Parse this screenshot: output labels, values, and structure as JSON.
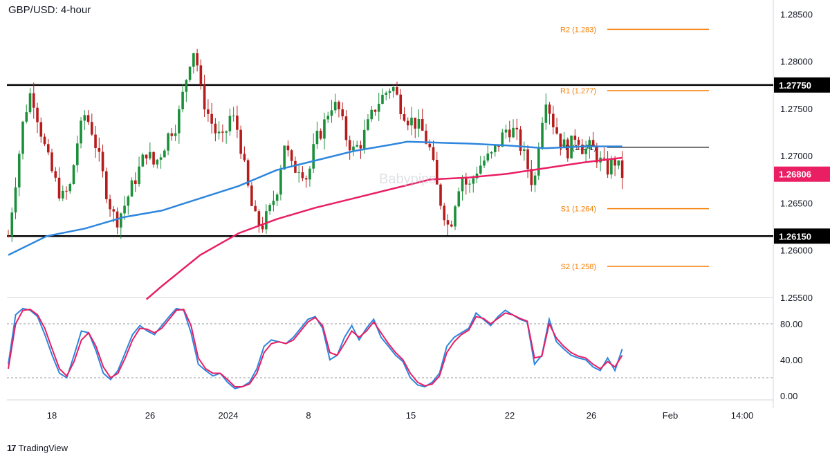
{
  "chart_title": "GBP/USD: 4-hour",
  "watermark": "Babypips",
  "footer": {
    "brand": "TradingView",
    "logo": "17"
  },
  "colors": {
    "up": "#26a69a",
    "up_body": "#1b8f3a",
    "down": "#b71c1c",
    "ma_fast": "#2e86de",
    "ma_slow": "#e91e63",
    "pivot": "#f57c00",
    "range_line": "#000000",
    "stoch_k": "#2e86de",
    "stoch_d": "#e91e63"
  },
  "chart_data": [
    {
      "type": "candlestick",
      "symbol": "GBP/USD",
      "timeframe": "4-hour",
      "ylim": [
        1.255,
        1.2865
      ],
      "y_ticks": [
        "1.28500",
        "1.28000",
        "1.27500",
        "1.27000",
        "1.26500",
        "1.26000",
        "1.25500"
      ],
      "x_ticks": [
        "18",
        "26",
        "2024",
        "8",
        "15",
        "22",
        "26",
        "Feb",
        "14:00"
      ],
      "horizontal_lines": [
        {
          "label": "1.27750",
          "value": 1.2775,
          "color": "#000000"
        },
        {
          "label": "1.26150",
          "value": 1.2615,
          "color": "#000000"
        }
      ],
      "pivot_levels": [
        {
          "label": "R2 (1.283)",
          "value": 1.2834
        },
        {
          "label": "R1 (1.277)",
          "value": 1.2769
        },
        {
          "label": "PP (1.271)",
          "value": 1.2709
        },
        {
          "label": "S1 (1.264)",
          "value": 1.2644
        },
        {
          "label": "S2 (1.258)",
          "value": 1.2583
        }
      ],
      "last_price": {
        "label": "1.26806",
        "value": 1.26806
      },
      "price_path": [
        [
          0,
          1.2615
        ],
        [
          4,
          1.274
        ],
        [
          6,
          1.277
        ],
        [
          8,
          1.2735
        ],
        [
          10,
          1.27
        ],
        [
          12,
          1.2675
        ],
        [
          14,
          1.2655
        ],
        [
          16,
          1.2665
        ],
        [
          18,
          1.2715
        ],
        [
          20,
          1.2745
        ],
        [
          22,
          1.2725
        ],
        [
          24,
          1.269
        ],
        [
          26,
          1.2655
        ],
        [
          28,
          1.263
        ],
        [
          30,
          1.2645
        ],
        [
          32,
          1.2665
        ],
        [
          34,
          1.2685
        ],
        [
          36,
          1.2705
        ],
        [
          38,
          1.269
        ],
        [
          40,
          1.2705
        ],
        [
          42,
          1.2725
        ],
        [
          44,
          1.2735
        ],
        [
          46,
          1.2775
        ],
        [
          48,
          1.2815
        ],
        [
          49,
          1.2805
        ],
        [
          50,
          1.277
        ],
        [
          52,
          1.2745
        ],
        [
          54,
          1.2725
        ],
        [
          56,
          1.2715
        ],
        [
          58,
          1.2745
        ],
        [
          60,
          1.2725
        ],
        [
          62,
          1.2675
        ],
        [
          64,
          1.2635
        ],
        [
          66,
          1.2625
        ],
        [
          68,
          1.264
        ],
        [
          70,
          1.2665
        ],
        [
          72,
          1.2715
        ],
        [
          74,
          1.2685
        ],
        [
          76,
          1.269
        ],
        [
          78,
          1.2675
        ],
        [
          80,
          1.2715
        ],
        [
          82,
          1.273
        ],
        [
          84,
          1.2755
        ],
        [
          86,
          1.275
        ],
        [
          88,
          1.272
        ],
        [
          90,
          1.2705
        ],
        [
          92,
          1.2715
        ],
        [
          94,
          1.2735
        ],
        [
          96,
          1.2755
        ],
        [
          98,
          1.2765
        ],
        [
          100,
          1.2775
        ],
        [
          102,
          1.2755
        ],
        [
          104,
          1.274
        ],
        [
          106,
          1.2735
        ],
        [
          108,
          1.2725
        ],
        [
          110,
          1.2705
        ],
        [
          112,
          1.266
        ],
        [
          114,
          1.2635
        ],
        [
          115,
          1.262
        ],
        [
          116,
          1.2645
        ],
        [
          118,
          1.268
        ],
        [
          120,
          1.2665
        ],
        [
          122,
          1.2685
        ],
        [
          124,
          1.2695
        ],
        [
          126,
          1.27
        ],
        [
          128,
          1.2715
        ],
        [
          130,
          1.273
        ],
        [
          132,
          1.2725
        ],
        [
          134,
          1.2705
        ],
        [
          136,
          1.268
        ],
        [
          137,
          1.2665
        ],
        [
          138,
          1.271
        ],
        [
          140,
          1.2765
        ],
        [
          142,
          1.2735
        ],
        [
          144,
          1.2715
        ],
        [
          146,
          1.2705
        ],
        [
          148,
          1.2725
        ],
        [
          150,
          1.2705
        ],
        [
          152,
          1.271
        ],
        [
          154,
          1.2695
        ],
        [
          156,
          1.2685
        ],
        [
          158,
          1.2695
        ],
        [
          160,
          1.268
        ]
      ],
      "series": [
        {
          "name": "",
          "values_from_x": [
            [
              0,
              1.2595
            ],
            [
              10,
              1.2615
            ],
            [
              20,
              1.2623
            ],
            [
              30,
              1.2635
            ],
            [
              40,
              1.2642
            ],
            [
              50,
              1.2655
            ],
            [
              60,
              1.2668
            ],
            [
              70,
              1.2685
            ],
            [
              80,
              1.2695
            ],
            [
              90,
              1.2705
            ],
            [
              100,
              1.2712
            ],
            [
              104,
              1.2715
            ],
            [
              120,
              1.2713
            ],
            [
              130,
              1.2711
            ],
            [
              140,
              1.2708
            ],
            [
              150,
              1.271
            ],
            [
              160,
              1.271
            ]
          ]
        },
        {
          "name": "",
          "values_from_x": [
            [
              36,
              1.2548
            ],
            [
              40,
              1.2562
            ],
            [
              50,
              1.2595
            ],
            [
              60,
              1.2618
            ],
            [
              70,
              1.2633
            ],
            [
              80,
              1.2645
            ],
            [
              90,
              1.2655
            ],
            [
              100,
              1.2665
            ],
            [
              110,
              1.2675
            ],
            [
              120,
              1.2677
            ],
            [
              130,
              1.2681
            ],
            [
              140,
              1.2687
            ],
            [
              150,
              1.2693
            ],
            [
              160,
              1.2698
            ]
          ]
        }
      ]
    },
    {
      "type": "line",
      "indicator": "Stochastic",
      "ylim": [
        0,
        100
      ],
      "y_ticks": [
        "80.00",
        "40.00",
        "0.00"
      ],
      "guides": [
        80,
        20
      ],
      "series": [
        {
          "name": "",
          "color": "#2e86de",
          "values": [
            [
              0,
              35
            ],
            [
              2,
              90
            ],
            [
              4,
              97
            ],
            [
              6,
              95
            ],
            [
              8,
              88
            ],
            [
              10,
              68
            ],
            [
              12,
              45
            ],
            [
              14,
              25
            ],
            [
              16,
              20
            ],
            [
              18,
              45
            ],
            [
              20,
              72
            ],
            [
              22,
              70
            ],
            [
              24,
              50
            ],
            [
              26,
              25
            ],
            [
              28,
              18
            ],
            [
              30,
              28
            ],
            [
              32,
              48
            ],
            [
              34,
              68
            ],
            [
              36,
              78
            ],
            [
              38,
              72
            ],
            [
              40,
              68
            ],
            [
              42,
              78
            ],
            [
              44,
              88
            ],
            [
              46,
              97
            ],
            [
              48,
              95
            ],
            [
              50,
              70
            ],
            [
              52,
              35
            ],
            [
              54,
              28
            ],
            [
              56,
              22
            ],
            [
              58,
              25
            ],
            [
              60,
              15
            ],
            [
              62,
              8
            ],
            [
              64,
              10
            ],
            [
              66,
              15
            ],
            [
              68,
              30
            ],
            [
              70,
              55
            ],
            [
              72,
              62
            ],
            [
              74,
              60
            ],
            [
              76,
              58
            ],
            [
              78,
              65
            ],
            [
              80,
              75
            ],
            [
              82,
              85
            ],
            [
              84,
              88
            ],
            [
              86,
              75
            ],
            [
              88,
              40
            ],
            [
              90,
              45
            ],
            [
              92,
              65
            ],
            [
              94,
              78
            ],
            [
              96,
              62
            ],
            [
              98,
              75
            ],
            [
              100,
              85
            ],
            [
              102,
              65
            ],
            [
              104,
              55
            ],
            [
              106,
              45
            ],
            [
              108,
              38
            ],
            [
              110,
              20
            ],
            [
              112,
              12
            ],
            [
              114,
              10
            ],
            [
              116,
              15
            ],
            [
              118,
              25
            ],
            [
              120,
              55
            ],
            [
              122,
              65
            ],
            [
              124,
              70
            ],
            [
              126,
              75
            ],
            [
              128,
              92
            ],
            [
              130,
              85
            ],
            [
              132,
              78
            ],
            [
              134,
              88
            ],
            [
              136,
              95
            ],
            [
              138,
              90
            ],
            [
              140,
              85
            ],
            [
              142,
              82
            ],
            [
              144,
              35
            ],
            [
              146,
              45
            ],
            [
              148,
              85
            ],
            [
              150,
              60
            ],
            [
              152,
              52
            ],
            [
              154,
              45
            ],
            [
              156,
              42
            ],
            [
              158,
              40
            ],
            [
              160,
              32
            ],
            [
              162,
              28
            ],
            [
              164,
              42
            ],
            [
              166,
              28
            ],
            [
              168,
              52
            ]
          ]
        },
        {
          "name": "",
          "color": "#e91e63",
          "values": [
            [
              0,
              30
            ],
            [
              2,
              80
            ],
            [
              4,
              95
            ],
            [
              6,
              96
            ],
            [
              8,
              90
            ],
            [
              10,
              75
            ],
            [
              12,
              52
            ],
            [
              14,
              30
            ],
            [
              16,
              22
            ],
            [
              18,
              38
            ],
            [
              20,
              62
            ],
            [
              22,
              70
            ],
            [
              24,
              55
            ],
            [
              26,
              32
            ],
            [
              28,
              20
            ],
            [
              30,
              25
            ],
            [
              32,
              42
            ],
            [
              34,
              62
            ],
            [
              36,
              75
            ],
            [
              38,
              74
            ],
            [
              40,
              70
            ],
            [
              42,
              75
            ],
            [
              44,
              85
            ],
            [
              46,
              95
            ],
            [
              48,
              96
            ],
            [
              50,
              78
            ],
            [
              52,
              42
            ],
            [
              54,
              30
            ],
            [
              56,
              25
            ],
            [
              58,
              25
            ],
            [
              60,
              18
            ],
            [
              62,
              10
            ],
            [
              64,
              10
            ],
            [
              66,
              13
            ],
            [
              68,
              25
            ],
            [
              70,
              48
            ],
            [
              72,
              58
            ],
            [
              74,
              60
            ],
            [
              76,
              58
            ],
            [
              78,
              62
            ],
            [
              80,
              72
            ],
            [
              82,
              82
            ],
            [
              84,
              87
            ],
            [
              86,
              78
            ],
            [
              88,
              48
            ],
            [
              90,
              45
            ],
            [
              92,
              58
            ],
            [
              94,
              72
            ],
            [
              96,
              65
            ],
            [
              98,
              72
            ],
            [
              100,
              82
            ],
            [
              102,
              70
            ],
            [
              104,
              58
            ],
            [
              106,
              48
            ],
            [
              108,
              40
            ],
            [
              110,
              25
            ],
            [
              112,
              15
            ],
            [
              114,
              11
            ],
            [
              116,
              13
            ],
            [
              118,
              22
            ],
            [
              120,
              48
            ],
            [
              122,
              60
            ],
            [
              124,
              68
            ],
            [
              126,
              73
            ],
            [
              128,
              88
            ],
            [
              130,
              86
            ],
            [
              132,
              80
            ],
            [
              134,
              86
            ],
            [
              136,
              92
            ],
            [
              138,
              90
            ],
            [
              140,
              86
            ],
            [
              142,
              83
            ],
            [
              144,
              42
            ],
            [
              146,
              44
            ],
            [
              148,
              80
            ],
            [
              150,
              64
            ],
            [
              152,
              55
            ],
            [
              154,
              48
            ],
            [
              156,
              44
            ],
            [
              158,
              42
            ],
            [
              160,
              35
            ],
            [
              162,
              30
            ],
            [
              164,
              38
            ],
            [
              166,
              32
            ],
            [
              168,
              45
            ]
          ]
        }
      ]
    }
  ]
}
